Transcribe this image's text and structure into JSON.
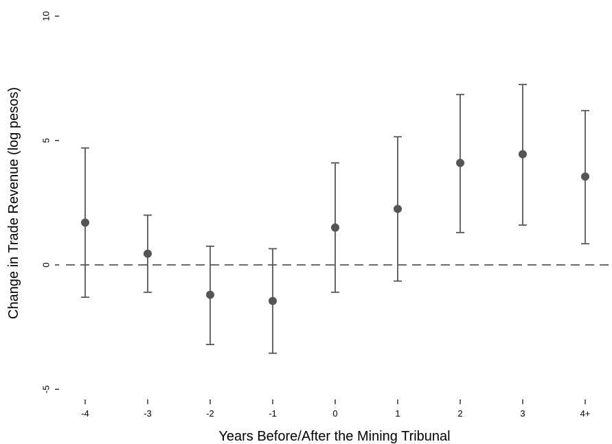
{
  "chart_data": {
    "type": "scatter",
    "subtype": "coefficient plot with confidence intervals",
    "title": "",
    "xlabel": "Years Before/After the Mining Tribunal",
    "ylabel": "Change in Trade Revenue (log pesos)",
    "categories": [
      "-4",
      "-3",
      "-2",
      "-1",
      "0",
      "1",
      "2",
      "3",
      "4+"
    ],
    "series": [
      {
        "values": [
          1.7,
          0.45,
          -1.2,
          -1.45,
          1.5,
          2.25,
          4.1,
          4.45,
          3.55
        ],
        "ci_lower": [
          -1.3,
          -1.1,
          -3.2,
          -3.55,
          -1.1,
          -0.65,
          1.3,
          1.6,
          0.85
        ],
        "ci_upper": [
          4.7,
          2.0,
          0.75,
          0.65,
          4.1,
          5.15,
          6.85,
          7.25,
          6.2
        ]
      }
    ],
    "yticks": [
      "-5",
      "0",
      "5",
      "10"
    ],
    "ylim": [
      -5,
      10
    ],
    "reference_line": 0,
    "grid": false,
    "legend": "none",
    "colors": {
      "marker": "#555555",
      "errorbar": "#555555",
      "reference": "#555555",
      "axis": "#000000"
    }
  }
}
